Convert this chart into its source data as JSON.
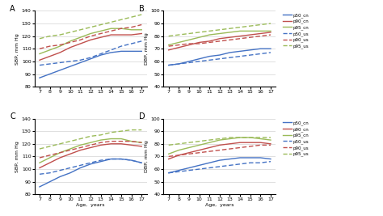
{
  "ages": [
    7,
    8,
    9,
    10,
    11,
    12,
    13,
    14,
    15,
    16,
    17
  ],
  "panel_A": {
    "title": "A",
    "ylabel": "SBP, mm Hg",
    "ylim": [
      80,
      140
    ],
    "yticks": [
      80,
      90,
      100,
      110,
      120,
      130,
      140
    ],
    "cn_p50": [
      87,
      90,
      93,
      96,
      99,
      102,
      105,
      107,
      108,
      108,
      108
    ],
    "cn_p90": [
      101,
      104,
      107,
      111,
      114,
      117,
      119,
      121,
      121,
      121,
      122
    ],
    "cn_p95": [
      106,
      109,
      112,
      116,
      119,
      122,
      124,
      126,
      126,
      125,
      125
    ],
    "us_p50": [
      97,
      98,
      99,
      100,
      101,
      103,
      106,
      109,
      112,
      114,
      116
    ],
    "us_p90": [
      110,
      112,
      113,
      115,
      117,
      120,
      122,
      124,
      126,
      127,
      129
    ],
    "us_p95": [
      118,
      120,
      121,
      123,
      125,
      127,
      129,
      131,
      133,
      135,
      137
    ]
  },
  "panel_B": {
    "title": "B",
    "ylabel": "DBP, mm Hg",
    "ylim": [
      40,
      100
    ],
    "yticks": [
      40,
      50,
      60,
      70,
      80,
      90,
      100
    ],
    "cn_p50": [
      57,
      58,
      60,
      62,
      64,
      65,
      67,
      68,
      69,
      70,
      70
    ],
    "cn_p90": [
      69,
      71,
      73,
      75,
      76,
      78,
      79,
      80,
      81,
      82,
      83
    ],
    "cn_p95": [
      73,
      75,
      77,
      79,
      81,
      82,
      83,
      84,
      84,
      84,
      84
    ],
    "us_p50": [
      57,
      58,
      59,
      60,
      61,
      62,
      63,
      64,
      65,
      66,
      67
    ],
    "us_p90": [
      72,
      73,
      74,
      74,
      75,
      76,
      77,
      78,
      79,
      80,
      81
    ],
    "us_p95": [
      80,
      81,
      82,
      83,
      84,
      85,
      86,
      87,
      88,
      89,
      90
    ]
  },
  "panel_C": {
    "title": "C",
    "ylabel": "SBP, mm Hg",
    "ylim": [
      80,
      140
    ],
    "yticks": [
      80,
      90,
      100,
      110,
      120,
      130,
      140
    ],
    "cn_p50": [
      86,
      90,
      94,
      97,
      101,
      104,
      106,
      108,
      108,
      107,
      105
    ],
    "cn_p90": [
      101,
      105,
      109,
      112,
      115,
      117,
      119,
      120,
      120,
      119,
      118
    ],
    "cn_p95": [
      105,
      109,
      113,
      116,
      119,
      121,
      123,
      124,
      124,
      122,
      121
    ],
    "us_p50": [
      96,
      97,
      99,
      101,
      103,
      105,
      107,
      108,
      108,
      107,
      105
    ],
    "us_p90": [
      109,
      111,
      113,
      115,
      117,
      119,
      121,
      122,
      122,
      122,
      121
    ],
    "us_p95": [
      116,
      118,
      120,
      122,
      124,
      126,
      127,
      129,
      130,
      131,
      131
    ]
  },
  "panel_D": {
    "title": "D",
    "ylabel": "DBP, mm Hg",
    "ylim": [
      40,
      100
    ],
    "yticks": [
      40,
      50,
      60,
      70,
      80,
      90,
      100
    ],
    "cn_p50": [
      57,
      59,
      61,
      63,
      65,
      67,
      68,
      69,
      69,
      69,
      68
    ],
    "cn_p90": [
      68,
      71,
      73,
      75,
      77,
      79,
      80,
      81,
      81,
      81,
      80
    ],
    "cn_p95": [
      72,
      75,
      77,
      79,
      81,
      83,
      84,
      85,
      85,
      84,
      83
    ],
    "us_p50": [
      57,
      58,
      59,
      60,
      61,
      62,
      63,
      64,
      65,
      65,
      66
    ],
    "us_p90": [
      70,
      71,
      72,
      73,
      74,
      75,
      76,
      77,
      78,
      79,
      79
    ],
    "us_p95": [
      79,
      80,
      81,
      82,
      83,
      84,
      85,
      85,
      85,
      85,
      85
    ]
  },
  "colors": {
    "p50_cn": "#4472c4",
    "p90_cn": "#c0504d",
    "p95_cn": "#9bbb59",
    "p50_us": "#4472c4",
    "p90_us": "#c0504d",
    "p95_us": "#9bbb59"
  }
}
